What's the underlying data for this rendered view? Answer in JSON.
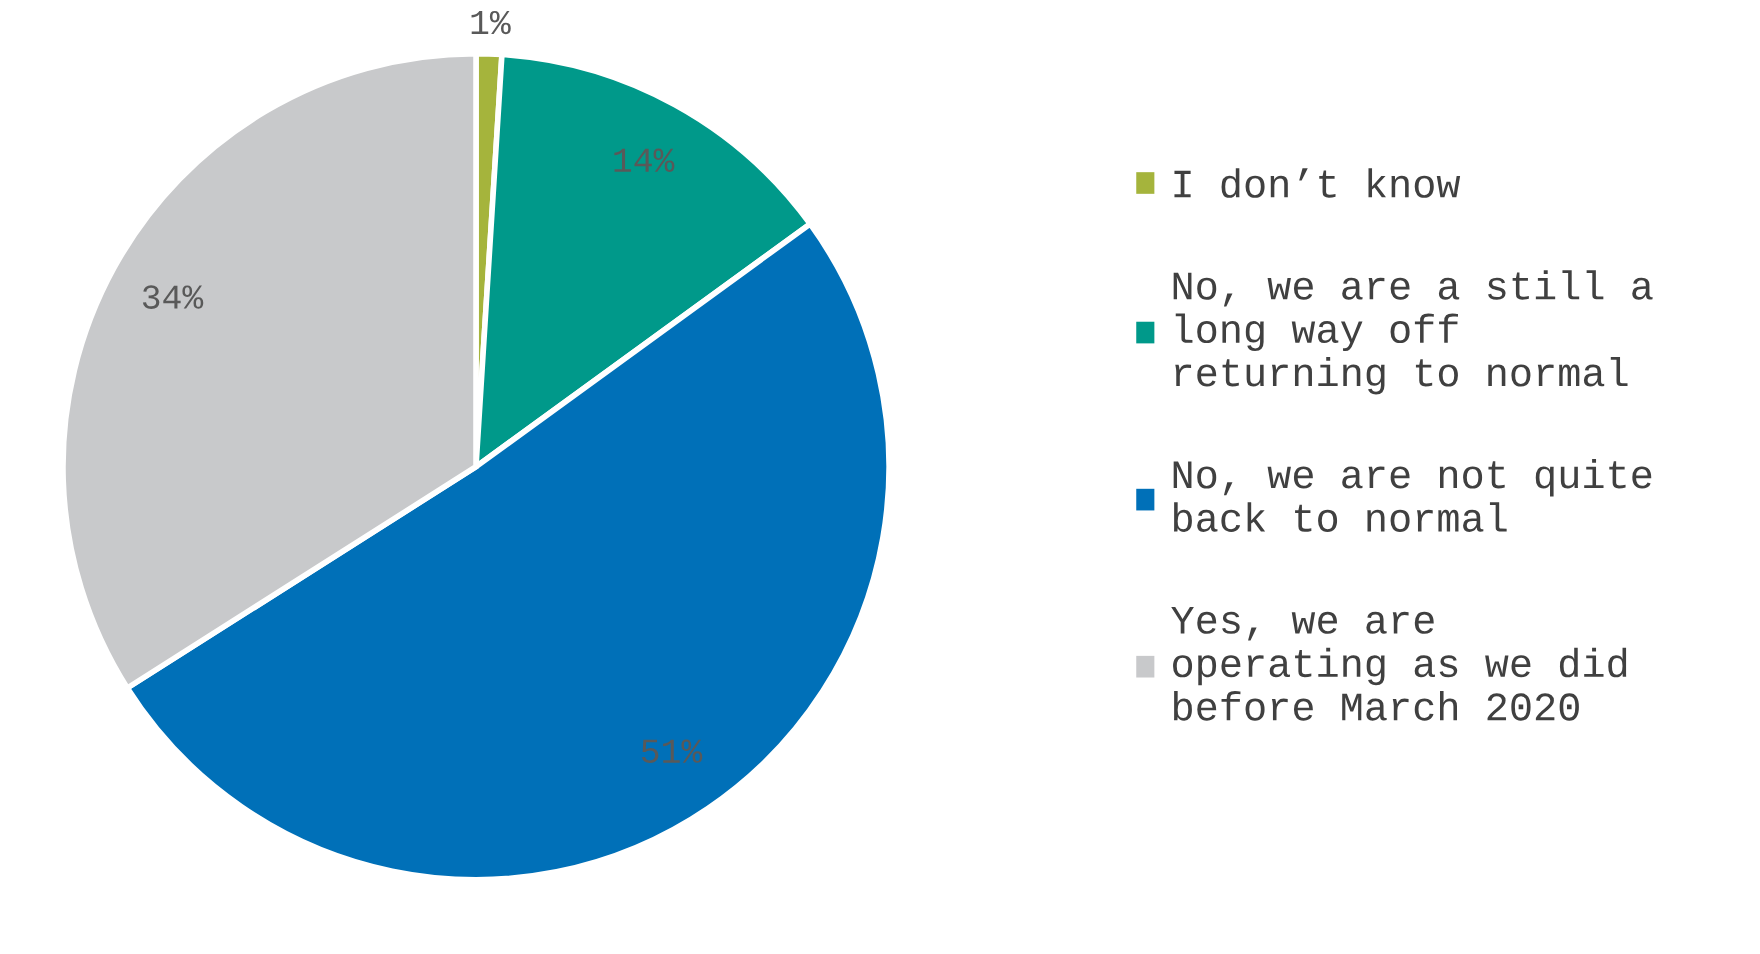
{
  "chart_data": {
    "type": "pie",
    "categories": [
      "I don’t know",
      "No, we are a still a\nlong way off\nreturning to normal",
      "No, we are not quite\nback to normal",
      "Yes, we are\noperating as we did\nbefore March 2020"
    ],
    "values": [
      1,
      14,
      51,
      34
    ],
    "colors": [
      "#a5b43c",
      "#00998a",
      "#0070b8",
      "#c8c9cb"
    ],
    "value_labels": [
      "1%",
      "14%",
      "51%",
      "34%"
    ],
    "legend": "right"
  }
}
